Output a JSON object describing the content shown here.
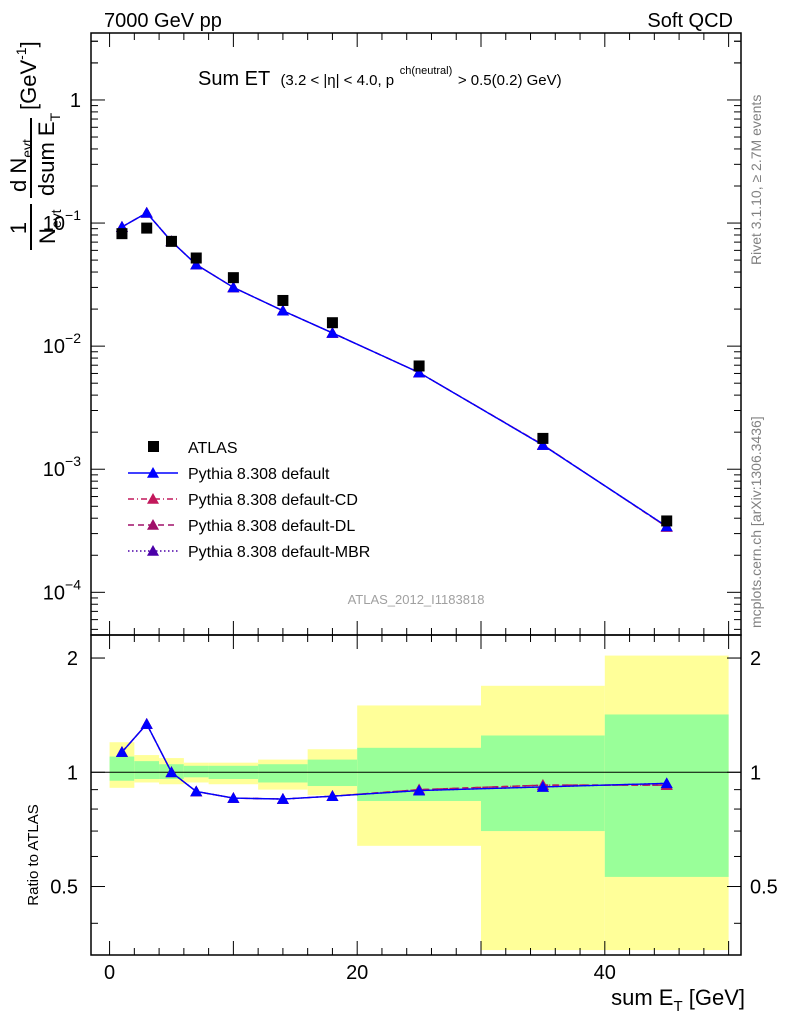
{
  "header": {
    "left": "7000 GeV pp",
    "right": "Soft QCD"
  },
  "plot_title": {
    "main": "Sum ET",
    "cut_a": "(3.2 < |η| < 4.0, p",
    "cut_sup": "ch(neutral)",
    "cut_b": " > 0.5(0.2) GeV)"
  },
  "side_labels": {
    "rivet": "Rivet 3.1.10, ≥ 2.7M events",
    "mcplots": "mcplots.cern.ch [arXiv:1306.3436]"
  },
  "analysis_id": "ATLAS_2012_I1183818",
  "y_axis_main": {
    "frac_num": "1",
    "frac_den": "N",
    "frac_den_sub": "evt",
    "d_num": "d N",
    "d_num_sub": "evt",
    "d_den": "dsum E",
    "d_den_sub": "T",
    "unit": "[GeV",
    "unit_sup": "-1",
    "unit_close": "]"
  },
  "y_axis_ratio_label": "Ratio to ATLAS",
  "x_axis": {
    "label": "sum E",
    "label_sub": "T",
    "unit": " [GeV]"
  },
  "main_ticks": [
    {
      "value": 1,
      "base": "1",
      "exp": ""
    },
    {
      "value": 0.1,
      "base": "10",
      "exp": "−1"
    },
    {
      "value": 0.01,
      "base": "10",
      "exp": "−2"
    },
    {
      "value": 0.001,
      "base": "10",
      "exp": "−3"
    },
    {
      "value": 0.0001,
      "base": "10",
      "exp": "−4"
    }
  ],
  "ratio_ticks": [
    "0.5",
    "1",
    "2"
  ],
  "x_ticks": [
    "0",
    "20",
    "40"
  ],
  "colors": {
    "atlas": "#000000",
    "default": "#0000ff",
    "default_cd": "#c2185b",
    "default_dl": "#a0106a",
    "default_mbr": "#4b00a8",
    "band_outer": "#ffff99",
    "band_inner": "#99ff99"
  },
  "legend": [
    {
      "label": "ATLAS",
      "marker": "square",
      "line": "none",
      "color": "#000000"
    },
    {
      "label": "Pythia 8.308 default",
      "marker": "triangle",
      "line": "solid",
      "color": "#0000ff"
    },
    {
      "label": "Pythia 8.308 default-CD",
      "marker": "triangle",
      "line": "dashdot",
      "color": "#c2185b"
    },
    {
      "label": "Pythia 8.308 default-DL",
      "marker": "triangle",
      "line": "dash",
      "color": "#a0106a"
    },
    {
      "label": "Pythia 8.308 default-MBR",
      "marker": "triangle",
      "line": "dot",
      "color": "#4b00a8"
    }
  ],
  "chart_data": {
    "type": "scatter",
    "title": "Sum ET",
    "xlabel": "sum E_T [GeV]",
    "ylabel": "1/N_evt dN_evt/dsum E_T [GeV^-1]",
    "xlim": [
      -1.5,
      51
    ],
    "ylim": [
      4.5e-05,
      3.5
    ],
    "y_scale": "log",
    "ratio_ylim": [
      0.33,
      2.3
    ],
    "ratio_y_scale": "log",
    "legend_position": "lower-left",
    "bins": [
      [
        0,
        2
      ],
      [
        2,
        4
      ],
      [
        4,
        6
      ],
      [
        6,
        8
      ],
      [
        8,
        12
      ],
      [
        12,
        16
      ],
      [
        16,
        20
      ],
      [
        20,
        30
      ],
      [
        30,
        40
      ],
      [
        40,
        50
      ]
    ],
    "x": [
      1,
      3,
      5,
      7,
      10,
      14,
      18,
      25,
      35,
      45
    ],
    "atlas": [
      0.082,
      0.091,
      0.071,
      0.052,
      0.036,
      0.0235,
      0.0155,
      0.0069,
      0.00178,
      0.00038
    ],
    "series": [
      {
        "name": "Pythia 8.308 default",
        "values": [
          0.093,
          0.121,
          0.071,
          0.046,
          0.03,
          0.0194,
          0.0128,
          0.0061,
          0.00157,
          0.000343
        ]
      },
      {
        "name": "Pythia 8.308 default-CD",
        "values": [
          0.093,
          0.121,
          0.071,
          0.046,
          0.03,
          0.0194,
          0.0128,
          0.0061,
          0.00158,
          0.00034
        ]
      },
      {
        "name": "Pythia 8.308 default-DL",
        "values": [
          0.093,
          0.121,
          0.071,
          0.046,
          0.03,
          0.0194,
          0.0128,
          0.0061,
          0.00158,
          0.00034
        ]
      },
      {
        "name": "Pythia 8.308 default-MBR",
        "values": [
          0.093,
          0.121,
          0.071,
          0.046,
          0.03,
          0.0194,
          0.0128,
          0.0061,
          0.00157,
          0.000343
        ]
      }
    ],
    "ratio": {
      "series": [
        {
          "name": "Pythia 8.308 default",
          "values": [
            1.13,
            1.34,
            1.0,
            0.89,
            0.855,
            0.85,
            0.865,
            0.895,
            0.915,
            0.935
          ]
        },
        {
          "name": "Pythia 8.308 default-CD",
          "values": [
            1.13,
            1.34,
            1.0,
            0.89,
            0.855,
            0.85,
            0.865,
            0.9,
            0.925,
            0.925
          ]
        },
        {
          "name": "Pythia 8.308 default-DL",
          "values": [
            1.13,
            1.34,
            1.0,
            0.89,
            0.855,
            0.85,
            0.865,
            0.9,
            0.925,
            0.925
          ]
        },
        {
          "name": "Pythia 8.308 default-MBR",
          "values": [
            1.13,
            1.34,
            1.0,
            0.89,
            0.855,
            0.85,
            0.865,
            0.895,
            0.915,
            0.935
          ]
        }
      ],
      "band_outer": [
        [
          0.91,
          1.2
        ],
        [
          0.94,
          1.11
        ],
        [
          0.93,
          1.09
        ],
        [
          0.94,
          1.06
        ],
        [
          0.93,
          1.06
        ],
        [
          0.9,
          1.08
        ],
        [
          0.87,
          1.15
        ],
        [
          0.64,
          1.5
        ],
        [
          0.34,
          1.69
        ],
        [
          0.34,
          2.03
        ]
      ],
      "band_inner": [
        [
          0.95,
          1.1
        ],
        [
          0.96,
          1.07
        ],
        [
          0.96,
          1.05
        ],
        [
          0.97,
          1.04
        ],
        [
          0.96,
          1.04
        ],
        [
          0.94,
          1.05
        ],
        [
          0.92,
          1.08
        ],
        [
          0.84,
          1.16
        ],
        [
          0.7,
          1.25
        ],
        [
          0.53,
          1.42
        ]
      ]
    }
  }
}
